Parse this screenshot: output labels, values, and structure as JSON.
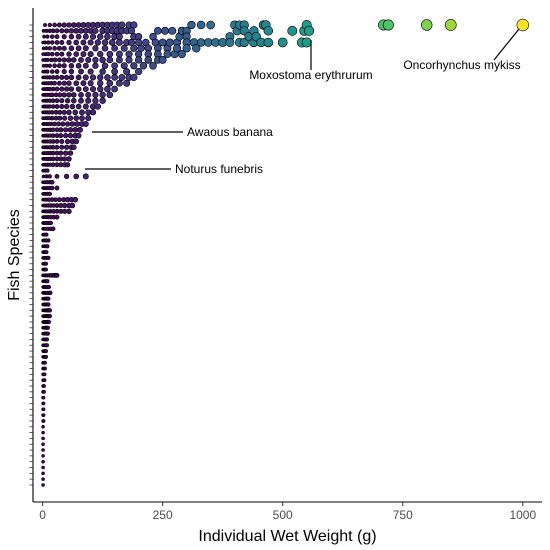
{
  "chart_data": {
    "type": "scatter",
    "xlabel": "Individual Wet Weight (g)",
    "ylabel": "Fish Species",
    "xlim": [
      -20,
      1040
    ],
    "xticks": [
      0,
      250,
      500,
      750,
      1000
    ],
    "xtick_labels": [
      "0",
      "250",
      "500",
      "750",
      "1000"
    ],
    "y_categories_count": 80,
    "y_tick_labels_shown": false,
    "grid": false,
    "legend": "none",
    "color_scale": {
      "name": "viridis",
      "mapped_to": "x",
      "domain": [
        0,
        1000
      ],
      "stops": [
        "#440154",
        "#482878",
        "#3e4989",
        "#31688e",
        "#26828e",
        "#1f9e89",
        "#35b779",
        "#6ece58",
        "#b5de2b",
        "#fde725"
      ]
    },
    "size_scale": {
      "mapped_to": "x",
      "domain": [
        0,
        1000
      ]
    },
    "species_rows": [
      {
        "rank": 1,
        "xs": [
          5,
          15,
          25,
          35,
          45,
          55,
          65,
          75,
          85,
          95,
          105,
          115,
          125,
          135,
          145,
          155,
          165,
          180,
          190,
          310,
          330,
          350,
          400,
          410,
          420,
          460,
          465,
          550,
          710,
          720,
          800,
          850,
          1000
        ]
      },
      {
        "rank": 2,
        "xs": [
          2,
          8,
          15,
          22,
          30,
          40,
          50,
          60,
          70,
          80,
          90,
          100,
          110,
          125,
          135,
          145,
          155,
          165,
          175,
          185,
          240,
          255,
          270,
          290,
          300,
          405,
          420,
          440,
          470,
          520,
          545,
          555
        ]
      },
      {
        "rank": 3,
        "xs": [
          3,
          10,
          20,
          30,
          45,
          60,
          75,
          90,
          105,
          120,
          135,
          150,
          160,
          190,
          200,
          230,
          285,
          300,
          390,
          430,
          445
        ]
      },
      {
        "rank": 4,
        "xs": [
          1,
          5,
          12,
          20,
          30,
          40,
          55,
          70,
          85,
          100,
          115,
          130,
          145,
          160,
          175,
          185,
          200,
          215,
          235,
          250,
          265,
          280,
          300,
          315,
          330,
          345,
          360,
          375,
          390,
          410,
          420,
          440,
          455,
          470,
          500,
          540,
          550
        ]
      },
      {
        "rank": 5,
        "xs": [
          2,
          8,
          15,
          25,
          35,
          45,
          60,
          75,
          90,
          110,
          130,
          150,
          170,
          190,
          205,
          220,
          240,
          260,
          280,
          300,
          320
        ]
      },
      {
        "rank": 6,
        "xs": [
          1,
          6,
          12,
          20,
          30,
          40,
          55,
          70,
          85,
          100,
          120,
          140,
          160,
          180,
          200,
          220,
          240,
          260,
          275,
          290
        ]
      },
      {
        "rank": 7,
        "xs": [
          1,
          5,
          10,
          18,
          26,
          35,
          45,
          55,
          65,
          80,
          95,
          110,
          125,
          140,
          160,
          180,
          200,
          220,
          240,
          250
        ]
      },
      {
        "rank": 8,
        "xs": [
          2,
          8,
          15,
          25,
          35,
          45,
          60,
          75,
          90,
          110,
          130,
          150,
          170,
          190,
          210,
          230
        ]
      },
      {
        "rank": 9,
        "xs": [
          1,
          5,
          10,
          20,
          30,
          45,
          60,
          80,
          100,
          125,
          150,
          175,
          200
        ]
      },
      {
        "rank": 10,
        "xs": [
          1,
          4,
          9,
          15,
          22,
          30,
          40,
          50,
          60,
          75,
          90,
          105,
          120,
          135,
          150,
          165,
          180,
          190
        ]
      },
      {
        "rank": 11,
        "xs": [
          1,
          3,
          7,
          12,
          18,
          25,
          35,
          45,
          55,
          70,
          85,
          100,
          120,
          140,
          160,
          175
        ]
      },
      {
        "rank": 12,
        "xs": [
          1,
          3,
          6,
          10,
          15,
          22,
          30,
          40,
          50,
          60,
          75,
          90,
          105,
          120,
          135,
          150
        ]
      },
      {
        "rank": 13,
        "xs": [
          1,
          3,
          6,
          10,
          15,
          20,
          28,
          36,
          45,
          55,
          65,
          80,
          95,
          110,
          125,
          140
        ]
      },
      {
        "rank": 14,
        "xs": [
          1,
          3,
          6,
          10,
          15,
          22,
          30,
          40,
          52,
          65,
          80,
          95,
          110,
          125
        ]
      },
      {
        "rank": 15,
        "xs": [
          1,
          3,
          6,
          10,
          15,
          22,
          30,
          40,
          50,
          62,
          75,
          90,
          105,
          115
        ]
      },
      {
        "rank": 16,
        "xs": [
          1,
          2,
          5,
          9,
          14,
          20,
          28,
          36,
          45,
          55,
          68,
          82,
          95,
          105
        ]
      },
      {
        "rank": 17,
        "xs": [
          1,
          2,
          5,
          9,
          14,
          20,
          28,
          36,
          46,
          58,
          70,
          82,
          95
        ]
      },
      {
        "rank": 18,
        "xs": [
          1,
          2,
          4,
          8,
          12,
          18,
          25,
          33,
          42,
          52,
          62,
          72,
          82,
          90
        ]
      },
      {
        "rank": 19,
        "xs": [
          1,
          2,
          4,
          7,
          11,
          16,
          22,
          30,
          38,
          48,
          58,
          68,
          78
        ]
      },
      {
        "rank": 20,
        "xs": [
          1,
          2,
          4,
          7,
          11,
          16,
          22,
          30,
          38,
          48,
          58,
          68,
          75
        ]
      },
      {
        "rank": 21,
        "xs": [
          1,
          2,
          4,
          7,
          11,
          16,
          22,
          30,
          40,
          52,
          62,
          70
        ]
      },
      {
        "rank": 22,
        "xs": [
          1,
          2,
          4,
          7,
          11,
          16,
          22,
          30,
          40,
          50,
          60,
          65
        ]
      },
      {
        "rank": 23,
        "xs": [
          1,
          2,
          4,
          7,
          11,
          16,
          22,
          30,
          38,
          48,
          58
        ]
      },
      {
        "rank": 24,
        "xs": [
          1,
          2,
          4,
          7,
          11,
          16,
          22,
          30,
          38,
          46,
          55
        ]
      },
      {
        "rank": 25,
        "xs": [
          1,
          2,
          4,
          7,
          11,
          16,
          22,
          30,
          38,
          46,
          52
        ]
      },
      {
        "rank": 26,
        "xs": [
          1,
          3,
          6,
          10
        ]
      },
      {
        "rank": 27,
        "xs": [
          2,
          8,
          15,
          30,
          50,
          70,
          90
        ]
      },
      {
        "rank": 28,
        "xs": [
          1,
          3,
          6,
          10,
          15,
          20
        ]
      },
      {
        "rank": 29,
        "xs": [
          1,
          3,
          6,
          10,
          15,
          20,
          30
        ]
      },
      {
        "rank": 30,
        "xs": [
          1,
          3,
          6,
          10,
          15
        ]
      },
      {
        "rank": 31,
        "xs": [
          1,
          3,
          5,
          9,
          14,
          20,
          27,
          35,
          44,
          52,
          60,
          68
        ]
      },
      {
        "rank": 32,
        "xs": [
          1,
          3,
          5,
          8,
          12,
          17,
          23,
          30,
          38,
          46,
          55,
          62
        ]
      },
      {
        "rank": 33,
        "xs": [
          1,
          3,
          5,
          8,
          12,
          17,
          23,
          30,
          38,
          46,
          55
        ]
      },
      {
        "rank": 34,
        "xs": [
          1,
          3,
          5,
          8,
          12,
          17,
          23,
          30
        ]
      },
      {
        "rank": 35,
        "xs": [
          1,
          3,
          5,
          8,
          12,
          17
        ]
      },
      {
        "rank": 36,
        "xs": [
          1,
          3,
          5,
          8,
          12,
          17,
          22
        ]
      },
      {
        "rank": 37,
        "xs": [
          1,
          3,
          5,
          8
        ]
      },
      {
        "rank": 38,
        "xs": [
          1,
          3,
          5,
          8,
          12
        ]
      },
      {
        "rank": 39,
        "xs": [
          1,
          3,
          5,
          8,
          10
        ]
      },
      {
        "rank": 40,
        "xs": [
          1,
          3,
          5,
          8
        ]
      },
      {
        "rank": 41,
        "xs": [
          1,
          3,
          5,
          8,
          12
        ]
      },
      {
        "rank": 42,
        "xs": [
          1,
          3,
          5,
          7
        ]
      },
      {
        "rank": 43,
        "xs": [
          1,
          3,
          5,
          7
        ]
      },
      {
        "rank": 44,
        "xs": [
          1,
          3,
          5,
          7,
          10,
          14,
          18,
          22,
          25,
          28,
          30
        ]
      },
      {
        "rank": 45,
        "xs": [
          1,
          3,
          5,
          7,
          10
        ]
      },
      {
        "rank": 46,
        "xs": [
          1,
          3,
          5,
          7,
          10,
          13
        ]
      },
      {
        "rank": 47,
        "xs": [
          1,
          3,
          5,
          7,
          10,
          13,
          16
        ]
      },
      {
        "rank": 48,
        "xs": [
          1,
          3,
          5,
          7,
          10,
          12
        ]
      },
      {
        "rank": 49,
        "xs": [
          1,
          3,
          5,
          7,
          10,
          12
        ]
      },
      {
        "rank": 50,
        "xs": [
          1,
          3,
          5,
          7,
          9,
          11,
          13,
          15
        ]
      },
      {
        "rank": 51,
        "xs": [
          1,
          3,
          5,
          7,
          9,
          11,
          13,
          15
        ]
      },
      {
        "rank": 52,
        "xs": [
          1,
          3,
          5,
          7,
          9,
          11,
          13
        ]
      },
      {
        "rank": 53,
        "xs": [
          1,
          3,
          5,
          7,
          9,
          11
        ]
      },
      {
        "rank": 54,
        "xs": [
          1,
          3,
          5,
          7,
          9,
          11
        ]
      },
      {
        "rank": 55,
        "xs": [
          1,
          3,
          5,
          7,
          9
        ]
      },
      {
        "rank": 56,
        "xs": [
          1,
          3,
          5,
          7,
          9
        ]
      },
      {
        "rank": 57,
        "xs": [
          1,
          3,
          5,
          7
        ]
      },
      {
        "rank": 58,
        "xs": [
          1,
          3,
          5,
          7
        ]
      },
      {
        "rank": 59,
        "xs": [
          1,
          3,
          5
        ]
      },
      {
        "rank": 60,
        "xs": [
          1,
          3,
          5
        ]
      },
      {
        "rank": 61,
        "xs": [
          1,
          2,
          4
        ]
      },
      {
        "rank": 62,
        "xs": [
          1,
          2,
          4
        ]
      },
      {
        "rank": 63,
        "xs": [
          1,
          2,
          3
        ]
      },
      {
        "rank": 64,
        "xs": [
          1,
          2,
          3
        ]
      },
      {
        "rank": 65,
        "xs": [
          1,
          2
        ]
      },
      {
        "rank": 66,
        "xs": [
          1,
          2
        ]
      },
      {
        "rank": 67,
        "xs": [
          1,
          2
        ]
      },
      {
        "rank": 68,
        "xs": [
          1,
          2
        ]
      },
      {
        "rank": 69,
        "xs": [
          1,
          2
        ]
      },
      {
        "rank": 70,
        "xs": [
          1
        ]
      },
      {
        "rank": 71,
        "xs": [
          1
        ]
      },
      {
        "rank": 72,
        "xs": [
          1
        ]
      },
      {
        "rank": 73,
        "xs": [
          1
        ]
      },
      {
        "rank": 74,
        "xs": [
          1
        ]
      },
      {
        "rank": 75,
        "xs": [
          1
        ]
      },
      {
        "rank": 76,
        "xs": [
          1
        ]
      },
      {
        "rank": 77,
        "xs": [
          1
        ]
      },
      {
        "rank": 78,
        "xs": [
          1
        ]
      },
      {
        "rank": 79,
        "xs": [
          1
        ]
      },
      {
        "rank": 80,
        "xs": [
          1
        ]
      }
    ],
    "annotations": [
      {
        "text": "Oncorhynchus mykiss",
        "x": 1000,
        "row_rank": 1
      },
      {
        "text": "Moxostoma erythrurum",
        "x": 555,
        "row_rank": 2
      },
      {
        "text": "Awaous banana",
        "x": 85,
        "row_rank": 16
      },
      {
        "text": "Noturus funebris",
        "x": 60,
        "row_rank": 21
      }
    ]
  }
}
